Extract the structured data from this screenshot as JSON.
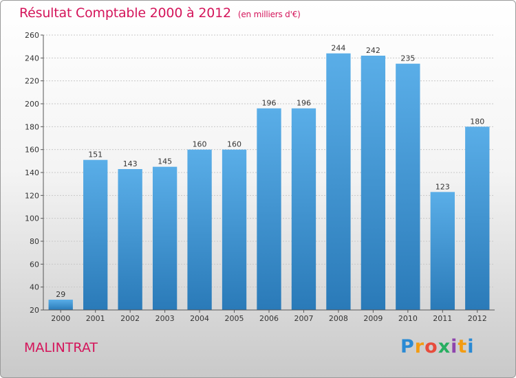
{
  "chart_data": {
    "type": "bar",
    "title": "Résultat Comptable 2000 à 2012",
    "subtitle": "(en milliers d'€)",
    "categories": [
      "2000",
      "2001",
      "2002",
      "2003",
      "2004",
      "2005",
      "2006",
      "2007",
      "2008",
      "2009",
      "2010",
      "2011",
      "2012"
    ],
    "values": [
      29,
      151,
      143,
      145,
      160,
      160,
      196,
      196,
      244,
      242,
      235,
      123,
      180
    ],
    "ylim": [
      20,
      260
    ],
    "yticks": [
      20,
      40,
      60,
      80,
      100,
      120,
      140,
      160,
      180,
      200,
      220,
      240,
      260
    ],
    "grid": true,
    "bar_color_top": "#5aaee8",
    "bar_color_bottom": "#2a7ab8"
  },
  "footer": {
    "city": "MALINTRAT",
    "logo": {
      "letters": [
        "P",
        "r",
        "o",
        "x",
        "i",
        "t",
        "i"
      ],
      "colors": [
        "#2a8ad4",
        "#f39c12",
        "#e74c3c",
        "#27ae60",
        "#8e44ad",
        "#f39c12",
        "#2a8ad4"
      ]
    }
  }
}
